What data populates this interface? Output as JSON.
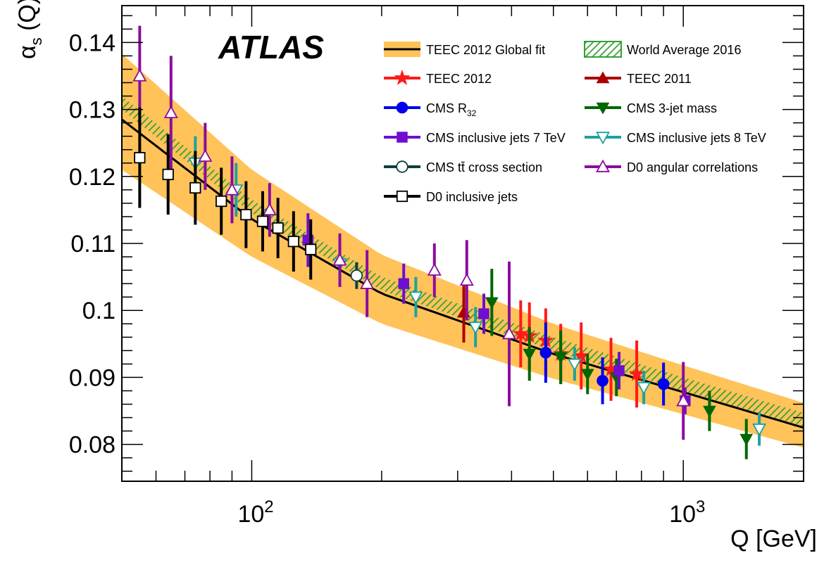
{
  "chart_data": {
    "type": "scatter",
    "experiment": "ATLAS",
    "xlabel": "Q [GeV]",
    "ylabel_main": "α",
    "ylabel_sub": "s",
    "ylabel_tail": " (Q)",
    "xscale": "log",
    "xlim": [
      50,
      1900
    ],
    "ylim": [
      0.0745,
      0.1455
    ],
    "yticks": [
      0.08,
      0.09,
      0.1,
      0.11,
      0.12,
      0.13,
      0.14
    ],
    "ytick_labels": [
      "0.08",
      "0.09",
      "0.1",
      "0.11",
      "0.12",
      "0.13",
      "0.14"
    ],
    "xticks": [
      100,
      1000
    ],
    "xtick_base": "10",
    "xtick_exps": [
      "2",
      "3"
    ],
    "legend_placement": "top-right",
    "bands": [
      {
        "name": "TEEC 2012 Global fit",
        "color": "#ffc35a",
        "x": [
          50,
          100,
          200,
          500,
          1000,
          1900
        ],
        "center": [
          0.1285,
          0.1136,
          0.1025,
          0.0935,
          0.0878,
          0.0825
        ],
        "upper": [
          0.1383,
          0.121,
          0.1083,
          0.098,
          0.0918,
          0.0862
        ],
        "lower": [
          0.121,
          0.108,
          0.098,
          0.0898,
          0.0845,
          0.0795
        ]
      },
      {
        "name": "World Average 2016",
        "color": "#33a033",
        "x": [
          50,
          100,
          200,
          500,
          1000,
          1900
        ],
        "center": [
          0.131,
          0.1155,
          0.104,
          0.095,
          0.089,
          0.0837
        ],
        "half_width": 0.001
      }
    ],
    "series": [
      {
        "name": "TEEC 2012",
        "color": "#ff1a1a",
        "marker": "star",
        "filled": true,
        "x": [
          420,
          440,
          480,
          520,
          580,
          680,
          780
        ],
        "y": [
          0.0965,
          0.0962,
          0.0955,
          0.0935,
          0.0932,
          0.0912,
          0.0905
        ],
        "err": [
          0.005,
          0.005,
          0.0048,
          0.0045,
          0.005,
          0.0047,
          0.005
        ]
      },
      {
        "name": "TEEC 2011",
        "color": "#aa0000",
        "marker": "triangle-up",
        "filled": true,
        "x": [
          310
        ],
        "y": [
          0.0997
        ],
        "err": [
          0.0045
        ]
      },
      {
        "name": "CMS R32",
        "color": "#0000ee",
        "marker": "circle",
        "filled": true,
        "x": [
          480,
          650,
          900
        ],
        "y": [
          0.0937,
          0.0895,
          0.089
        ],
        "err": [
          0.0045,
          0.0035,
          0.0032
        ]
      },
      {
        "name": "CMS 3-jet mass",
        "color": "#006600",
        "marker": "triangle-down",
        "filled": true,
        "x": [
          360,
          440,
          520,
          600,
          700,
          1150,
          1400
        ],
        "y": [
          0.1012,
          0.0935,
          0.093,
          0.0905,
          0.09,
          0.085,
          0.0808
        ],
        "err": [
          0.005,
          0.004,
          0.004,
          0.003,
          0.0028,
          0.003,
          0.003
        ]
      },
      {
        "name": "CMS inclusive jets 7 TeV",
        "color": "#6f0fd0",
        "marker": "square",
        "filled": true,
        "x": [
          135,
          225,
          345,
          710,
          1010
        ],
        "y": [
          0.1105,
          0.104,
          0.0995,
          0.091,
          0.0865
        ],
        "err": [
          0.004,
          0.003,
          0.003,
          0.0028,
          0.002
        ]
      },
      {
        "name": "CMS inclusive jets 8 TeV",
        "color": "#20a0a0",
        "marker": "triangle-down",
        "filled": false,
        "x": [
          74,
          92,
          160,
          240,
          330,
          560,
          810,
          1500
        ],
        "y": [
          0.122,
          0.118,
          0.107,
          0.102,
          0.0975,
          0.092,
          0.0885,
          0.0823
        ],
        "err": [
          0.004,
          0.004,
          0.003,
          0.003,
          0.003,
          0.0025,
          0.0025,
          0.0025
        ]
      },
      {
        "name": "CMS tt̄ cross section",
        "color": "#104040",
        "marker": "circle",
        "filled": false,
        "x": [
          175
        ],
        "y": [
          0.1052
        ],
        "err": [
          0.002
        ]
      },
      {
        "name": "D0 angular correlations",
        "color": "#8c0ca0",
        "marker": "triangle-up",
        "filled": false,
        "x": [
          55,
          65,
          78,
          90,
          110,
          160,
          185,
          265,
          315,
          395,
          1000
        ],
        "y": [
          0.135,
          0.1295,
          0.123,
          0.118,
          0.115,
          0.1075,
          0.104,
          0.106,
          0.1045,
          0.0965,
          0.0865
        ],
        "err": [
          0.0075,
          0.0085,
          0.005,
          0.005,
          0.004,
          0.004,
          0.005,
          0.004,
          0.006,
          0.0108,
          0.0058
        ]
      },
      {
        "name": "D0 inclusive jets",
        "color": "#000000",
        "marker": "square",
        "filled": false,
        "x": [
          55,
          64,
          74,
          85,
          97,
          106,
          115,
          125,
          137
        ],
        "y": [
          0.1228,
          0.1203,
          0.1183,
          0.1163,
          0.1143,
          0.1133,
          0.1123,
          0.1103,
          0.1091
        ],
        "err": [
          0.0075,
          0.006,
          0.0055,
          0.005,
          0.005,
          0.0045,
          0.0045,
          0.0045,
          0.0045
        ]
      }
    ],
    "legend": [
      {
        "label": "TEEC 2012 Global fit",
        "kind": "band-line",
        "color": "#ffc35a"
      },
      {
        "label": "World Average 2016",
        "kind": "hatch",
        "color": "#33a033"
      },
      {
        "label": "TEEC 2012",
        "kind": "marker",
        "series": 0
      },
      {
        "label": "TEEC 2011",
        "kind": "marker",
        "series": 1
      },
      {
        "label": "CMS R",
        "sub": "32",
        "kind": "marker",
        "series": 2
      },
      {
        "label": "CMS 3-jet mass",
        "kind": "marker",
        "series": 3
      },
      {
        "label": "CMS inclusive jets 7 TeV",
        "kind": "marker",
        "series": 4
      },
      {
        "label": "CMS inclusive jets 8 TeV",
        "kind": "marker",
        "series": 5
      },
      {
        "label": "CMS tt̄ cross section",
        "kind": "marker",
        "series": 6
      },
      {
        "label": "D0 angular correlations",
        "kind": "marker",
        "series": 7
      },
      {
        "label": "D0 inclusive jets",
        "kind": "marker",
        "series": 8
      }
    ]
  }
}
